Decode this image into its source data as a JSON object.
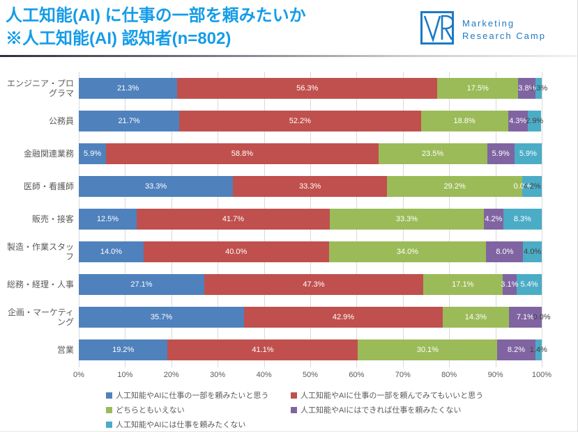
{
  "header": {
    "title_line1": "人工知能(AI) に仕事の一部を頼みたいか",
    "title_line2": "※人工知能(AI) 認知者(n=802)"
  },
  "logo": {
    "mark": "VR-monogram",
    "text_line1": "Marketing",
    "text_line2": "Research Camp",
    "color": "#1c79c6"
  },
  "chart_data": {
    "type": "bar",
    "stacked": true,
    "orientation": "horizontal",
    "title": "人工知能(AI) に仕事の一部を頼みたいか ※人工知能(AI) 認知者(n=802)",
    "categories": [
      "エンジニア・プログラマ",
      "公務員",
      "金融関連業務",
      "医師・看護師",
      "販売・接客",
      "製造・作業スタッフ",
      "総務・経理・人事",
      "企画・マーケティング",
      "営業"
    ],
    "series": [
      {
        "name": "人工知能やAIに仕事の一部を頼みたいと思う",
        "color": "#4F81BD",
        "values": [
          21.3,
          21.7,
          5.9,
          33.3,
          12.5,
          14.0,
          27.1,
          35.7,
          19.2
        ]
      },
      {
        "name": "人工知能やAIに仕事の一部を頼んでみてもいいと思う",
        "color": "#C0504D",
        "values": [
          56.3,
          52.2,
          58.8,
          33.3,
          41.7,
          40.0,
          47.3,
          42.9,
          41.1
        ]
      },
      {
        "name": "どちらともいえない",
        "color": "#9BBB59",
        "values": [
          17.5,
          18.8,
          23.5,
          29.2,
          33.3,
          34.0,
          17.1,
          14.3,
          30.1
        ]
      },
      {
        "name": "人工知能やAIにはできれば仕事を頼みたくない",
        "color": "#8064A2",
        "values": [
          3.8,
          4.3,
          5.9,
          0.0,
          4.2,
          8.0,
          3.1,
          7.1,
          8.2
        ]
      },
      {
        "name": "人工知能やAIには仕事を頼みたくない",
        "color": "#4BACC6",
        "values": [
          1.3,
          2.9,
          5.9,
          4.2,
          8.3,
          4.0,
          5.4,
          0.0,
          1.4
        ]
      }
    ],
    "x_ticks": [
      "0%",
      "10%",
      "20%",
      "30%",
      "40%",
      "50%",
      "60%",
      "70%",
      "80%",
      "90%",
      "100%"
    ],
    "xlim": [
      0,
      100
    ],
    "grid": true,
    "legend_position": "bottom",
    "label_format": "percent_one_decimal",
    "label_color_inside": "#ffffff",
    "label_color_overflow": "#404040"
  }
}
